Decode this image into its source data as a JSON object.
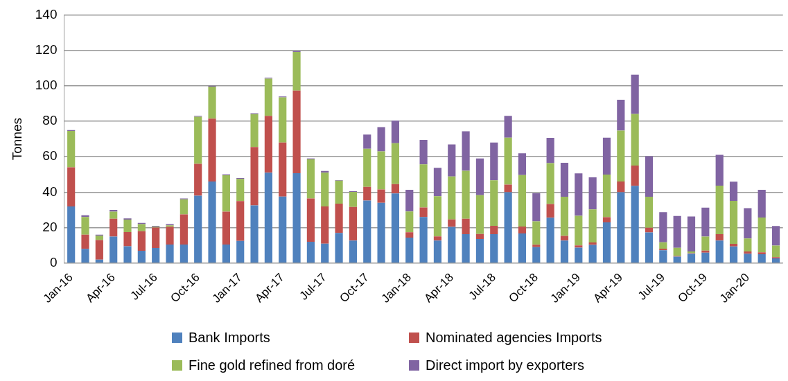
{
  "chart_data": {
    "type": "bar",
    "stacked": true,
    "ylabel": "Tonnes",
    "ylim": [
      0,
      140
    ],
    "yticks": [
      0,
      20,
      40,
      60,
      80,
      100,
      120,
      140
    ],
    "grid": "y",
    "legend": "bottom",
    "categories": [
      "Jan-16",
      null,
      null,
      "Apr-16",
      null,
      null,
      "Jul-16",
      null,
      null,
      "Oct-16",
      null,
      null,
      "Jan-17",
      null,
      null,
      "Apr-17",
      null,
      null,
      "Jul-17",
      null,
      null,
      "Oct-17",
      null,
      null,
      "Jan-18",
      null,
      null,
      "Apr-18",
      null,
      null,
      "Jul-18",
      null,
      null,
      "Oct-18",
      null,
      null,
      "Jan-19",
      null,
      null,
      "Apr-19",
      null,
      null,
      "Jul-19",
      null,
      null,
      "Oct-19",
      null,
      null,
      "Jan-20",
      null,
      null
    ],
    "series": [
      {
        "name": "Bank Imports",
        "color": "#4f81bd",
        "values": [
          32,
          8,
          2,
          15,
          9.5,
          7,
          8.5,
          10.5,
          10.5,
          38,
          46,
          10.5,
          12.5,
          32.5,
          51,
          37.5,
          50.7,
          12,
          11,
          17,
          12.7,
          35.3,
          34,
          39.3,
          14.4,
          26,
          12.7,
          20.4,
          16.3,
          13.6,
          16.3,
          40,
          16.7,
          9,
          25.6,
          12.7,
          8.7,
          10.3,
          23,
          40,
          43.6,
          17.3,
          7.3,
          3.6,
          5.3,
          5.9,
          12.7,
          9.4,
          5.3,
          5,
          2.7
        ]
      },
      {
        "name": "Nominated agencies Imports",
        "color": "#c0504d",
        "values": [
          22,
          8,
          11,
          10,
          8,
          11,
          11.5,
          10,
          17,
          18,
          35.5,
          18.5,
          22.5,
          33,
          32,
          30.5,
          46.6,
          24.5,
          21,
          16.5,
          19,
          7.7,
          7.5,
          5.3,
          3,
          5.4,
          2.4,
          4.2,
          8.7,
          2.8,
          4.7,
          4.3,
          3.9,
          1.4,
          7.7,
          2.7,
          1.3,
          1.3,
          2.9,
          6,
          11.4,
          2.6,
          0.8,
          0.4,
          0.3,
          1.2,
          3.6,
          1.5,
          1.3,
          1.1,
          0.6
        ]
      },
      {
        "name": "Fine gold refined from doré",
        "color": "#9bbb59",
        "values": [
          20.5,
          10,
          2.5,
          4,
          7,
          4,
          0.5,
          0.8,
          8.5,
          26.5,
          18,
          20.5,
          12.5,
          18.5,
          21,
          25.5,
          21.8,
          22,
          19,
          13,
          8.5,
          21.5,
          21.5,
          23,
          11.7,
          24.3,
          22.6,
          24.3,
          27.1,
          21.9,
          25.7,
          26.4,
          29,
          13.2,
          23.1,
          22,
          16.7,
          18.7,
          24,
          28.7,
          29.1,
          17.5,
          3.6,
          4.6,
          1,
          7.9,
          27.4,
          24.2,
          7.3,
          19.6,
          6.6
        ]
      },
      {
        "name": "Direct import by exporters",
        "color": "#8064a2",
        "values": [
          0.5,
          1,
          0.5,
          1,
          0.7,
          0.7,
          0.5,
          0.7,
          0.5,
          0.5,
          0.5,
          0.5,
          0.5,
          0.5,
          0.5,
          0.5,
          0.5,
          0.5,
          1,
          0.3,
          0.4,
          8,
          13.7,
          12.8,
          12.2,
          13.8,
          16,
          18,
          22.2,
          20.7,
          21.3,
          12.3,
          12.3,
          15.8,
          14.2,
          19.2,
          23.9,
          18.1,
          20.8,
          17.4,
          22.2,
          22.9,
          17,
          18,
          19.7,
          16.3,
          17.4,
          10.8,
          17.1,
          15.6,
          11
        ]
      }
    ]
  }
}
